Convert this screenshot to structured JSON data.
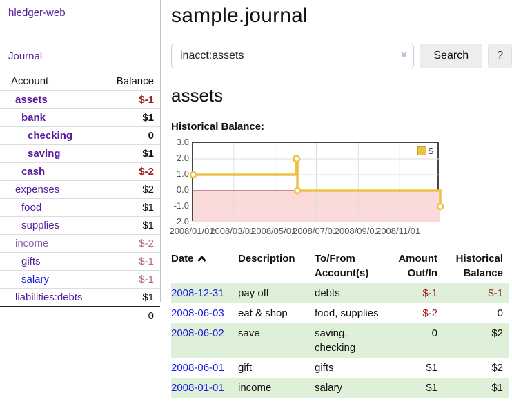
{
  "palette": {
    "link_purple": "#571c9d",
    "link_blue": "#1a1ae6",
    "negative_strong": "#9b1c1c",
    "negative_soft": "#b36b6b",
    "row_green": "#dff0d8",
    "series_gold": "#edc240",
    "zero_line_red": "#8b1a1a",
    "negative_region_pink": "#fbdada",
    "plot_border": "#464646",
    "tick_text": "#545454"
  },
  "sidebar": {
    "brand": "hledger-web",
    "journal_link": "Journal",
    "accounts_table": {
      "headers": {
        "account": "Account",
        "balance": "Balance"
      },
      "rows": [
        {
          "name": "assets",
          "balance": "$-1",
          "level": 1,
          "bold": true,
          "balance_tone": "neg-strong"
        },
        {
          "name": "bank",
          "balance": "$1",
          "level": 2,
          "bold": true,
          "balance_tone": "pos"
        },
        {
          "name": "checking",
          "balance": "0",
          "level": 3,
          "bold": true,
          "balance_tone": "pos"
        },
        {
          "name": "saving",
          "balance": "$1",
          "level": 3,
          "bold": true,
          "balance_tone": "pos"
        },
        {
          "name": "cash",
          "balance": "$-2",
          "level": 2,
          "bold": true,
          "balance_tone": "neg-strong"
        },
        {
          "name": "expenses",
          "balance": "$2",
          "level": 1,
          "bold": false,
          "balance_tone": "pos"
        },
        {
          "name": "food",
          "balance": "$1",
          "level": 2,
          "bold": false,
          "balance_tone": "pos"
        },
        {
          "name": "supplies",
          "balance": "$1",
          "level": 2,
          "bold": false,
          "balance_tone": "pos"
        },
        {
          "name": "income",
          "balance": "$-2",
          "level": 1,
          "bold": false,
          "balance_tone": "neg-soft",
          "name_tone": "muted"
        },
        {
          "name": "gifts",
          "balance": "$-1",
          "level": 2,
          "bold": false,
          "balance_tone": "neg-soft"
        },
        {
          "name": "salary",
          "balance": "$-1",
          "level": 2,
          "bold": false,
          "balance_tone": "neg-soft",
          "link_tone": "blue"
        },
        {
          "name": "liabilities:debts",
          "balance": "$1",
          "level": 1,
          "bold": false,
          "balance_tone": "pos"
        }
      ],
      "total": "0"
    }
  },
  "header": {
    "title": "sample.journal"
  },
  "search": {
    "query": "inacct:assets",
    "clear_icon": "×",
    "button_label": "Search",
    "help_label": "?"
  },
  "account_page": {
    "heading": "assets",
    "chart_label": "Historical Balance:"
  },
  "chart_data": {
    "type": "line",
    "step": true,
    "title": "Historical Balance:",
    "series": [
      {
        "name": "$",
        "color": "#edc240",
        "points": [
          [
            "2008-01-01",
            1
          ],
          [
            "2008-06-01",
            2
          ],
          [
            "2008-06-02",
            2
          ],
          [
            "2008-06-03",
            0
          ],
          [
            "2008-12-31",
            -1
          ]
        ]
      }
    ],
    "x_range": [
      "2008-01-01",
      "2008-12-31"
    ],
    "ylim": [
      -2,
      3
    ],
    "y_ticks": [
      {
        "value": 3,
        "label": "3.0"
      },
      {
        "value": 2,
        "label": "2.0"
      },
      {
        "value": 1,
        "label": "1.0"
      },
      {
        "value": 0,
        "label": "0.0"
      },
      {
        "value": -1,
        "label": "-1.0"
      },
      {
        "value": -2,
        "label": "-2.0"
      }
    ],
    "x_ticks": [
      {
        "date": "2008-01-01",
        "label": "2008/01/01"
      },
      {
        "date": "2008-03-01",
        "label": "2008/03/01"
      },
      {
        "date": "2008-05-01",
        "label": "2008/05/01"
      },
      {
        "date": "2008-07-01",
        "label": "2008/07/01"
      },
      {
        "date": "2008-09-01",
        "label": "2008/09/01"
      },
      {
        "date": "2008-11-01",
        "label": "2008/11/01"
      }
    ],
    "legend_position": "top-right",
    "negative_region_shaded": true,
    "grid": true
  },
  "journal_table": {
    "headers": [
      {
        "line1": "Date",
        "line2": "",
        "align": "left",
        "sorted": "asc"
      },
      {
        "line1": "Description",
        "line2": "",
        "align": "left"
      },
      {
        "line1": "To/From",
        "line2": "Account(s)",
        "align": "left"
      },
      {
        "line1": "Amount",
        "line2": "Out/In",
        "align": "right"
      },
      {
        "line1": "Historical",
        "line2": "Balance",
        "align": "right"
      }
    ],
    "rows": [
      {
        "date": "2008-12-31",
        "description": "pay off",
        "accounts": "debts",
        "amount": "$-1",
        "balance": "$-1"
      },
      {
        "date": "2008-06-03",
        "description": "eat & shop",
        "accounts": "food, supplies",
        "amount": "$-2",
        "balance": "0"
      },
      {
        "date": "2008-06-02",
        "description": "save",
        "accounts": "saving, checking",
        "amount": "0",
        "balance": "$2"
      },
      {
        "date": "2008-06-01",
        "description": "gift",
        "accounts": "gifts",
        "amount": "$1",
        "balance": "$2"
      },
      {
        "date": "2008-01-01",
        "description": "income",
        "accounts": "salary",
        "amount": "$1",
        "balance": "$1"
      }
    ]
  }
}
